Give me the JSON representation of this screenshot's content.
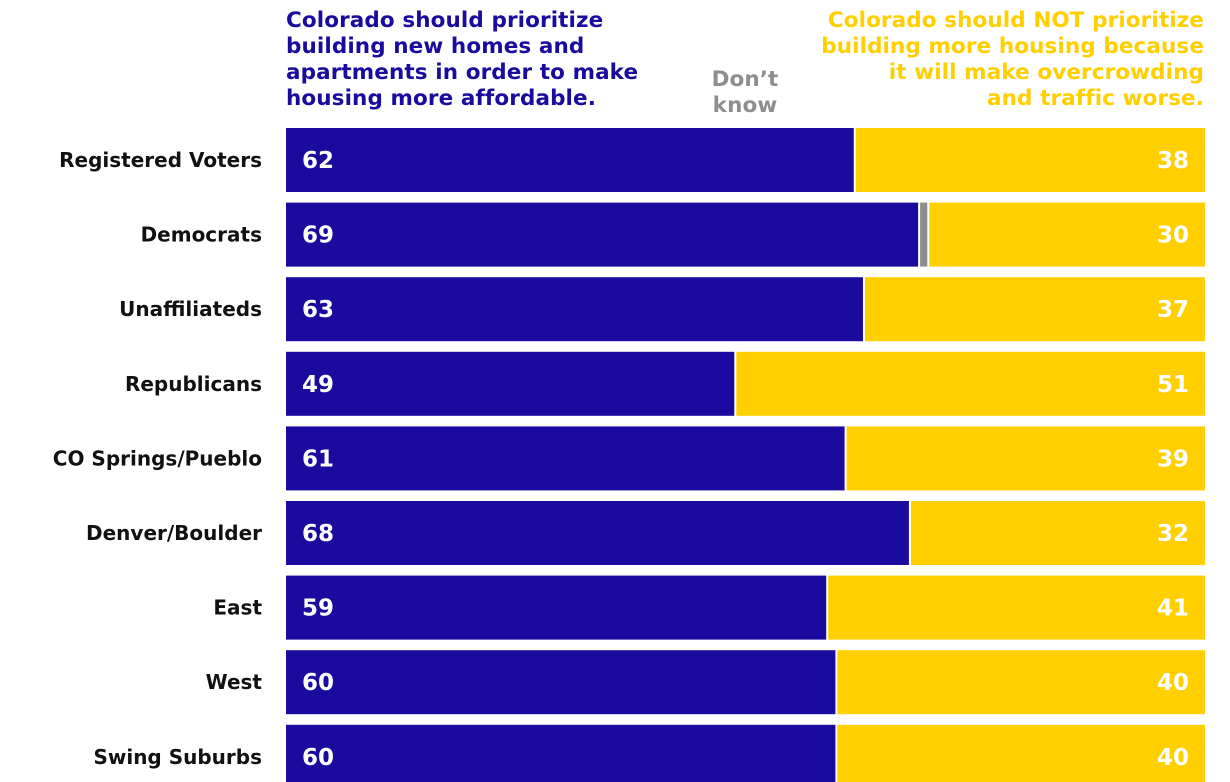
{
  "chart_data": {
    "type": "bar",
    "orientation": "horizontal",
    "stacked": true,
    "normalized": true,
    "categories": [
      "Registered Voters",
      "Democrats",
      "Unaffiliateds",
      "Republicans",
      "CO Springs/Pueblo",
      "Denver/Boulder",
      "East",
      "West",
      "Swing Suburbs"
    ],
    "series": [
      {
        "key": "support",
        "name": "Colorado should prioritize building new homes and apartments in order to make housing more affordable.",
        "color": "#1A0A9E",
        "values": [
          62,
          69,
          63,
          49,
          61,
          68,
          59,
          60,
          60
        ],
        "labels": [
          "62",
          "69",
          "63",
          "49",
          "61",
          "68",
          "59",
          "60",
          "60"
        ]
      },
      {
        "key": "dont_know",
        "name": "Don’t know",
        "color": "#8E8E8E",
        "values": [
          0,
          1,
          0,
          0,
          0,
          0,
          0,
          0,
          0
        ]
      },
      {
        "key": "oppose",
        "name": "Colorado should NOT prioritize building more housing because it will make overcrowding and traffic worse.",
        "color": "#FFCF00",
        "values": [
          38,
          30,
          37,
          51,
          39,
          32,
          41,
          40,
          40
        ],
        "labels": [
          "38",
          "30",
          "37",
          "51",
          "39",
          "32",
          "41",
          "40",
          "40"
        ]
      }
    ],
    "xlim": [
      0,
      100
    ],
    "grid": false,
    "legend_position": "top"
  },
  "legend": {
    "support": {
      "lines": [
        "Colorado should prioritize",
        "building new homes and",
        "apartments in order to make",
        "housing more affordable."
      ],
      "color": "#1A0A9E"
    },
    "dont_know": {
      "lines": [
        "Don’t",
        "know"
      ],
      "color": "#8E8E8E"
    },
    "oppose": {
      "lines": [
        "Colorado should NOT prioritize",
        "building more housing because",
        "it will make overcrowding",
        "and traffic worse."
      ],
      "color": "#FFCF00"
    }
  },
  "colors": {
    "row_label": "#111111",
    "value_label": "#ffffff"
  }
}
